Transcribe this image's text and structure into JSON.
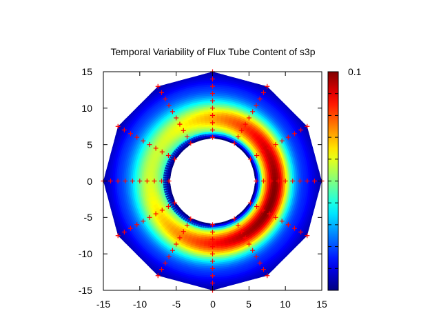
{
  "chart_data": {
    "type": "heatmap",
    "title": "Temporal Variability of Flux Tube Content of s3p",
    "xlabel": "",
    "ylabel": "",
    "xlim": [
      -15,
      15
    ],
    "ylim": [
      -15,
      15
    ],
    "x_ticks": [
      "-15",
      "-10",
      "-5",
      "0",
      "5",
      "10",
      "15"
    ],
    "y_ticks": [
      "15",
      "10",
      "5",
      "0",
      "-5",
      "-10",
      "-15"
    ],
    "colorbar": {
      "label": "0.1",
      "range": [
        0,
        0.1
      ],
      "colormap": "jet"
    },
    "grid": false,
    "legend": "none",
    "domain": {
      "shape": "annulus",
      "inner_radius": 6,
      "outer_radius": 15,
      "sectors": 12
    },
    "field_peak": {
      "center_radius": 8.6,
      "peak_angle_deg": -20,
      "max_value": 0.1
    },
    "sample_markers": {
      "symbol": "+",
      "color": "#ff0000",
      "angles_deg": [
        0,
        30,
        60,
        90,
        120,
        150,
        180,
        210,
        240,
        270,
        300,
        330
      ],
      "radii": [
        6,
        7,
        8,
        9,
        10,
        11,
        12,
        13,
        14,
        15
      ]
    },
    "colors": {
      "axis": "#000000",
      "marker": "#ff0000"
    }
  }
}
